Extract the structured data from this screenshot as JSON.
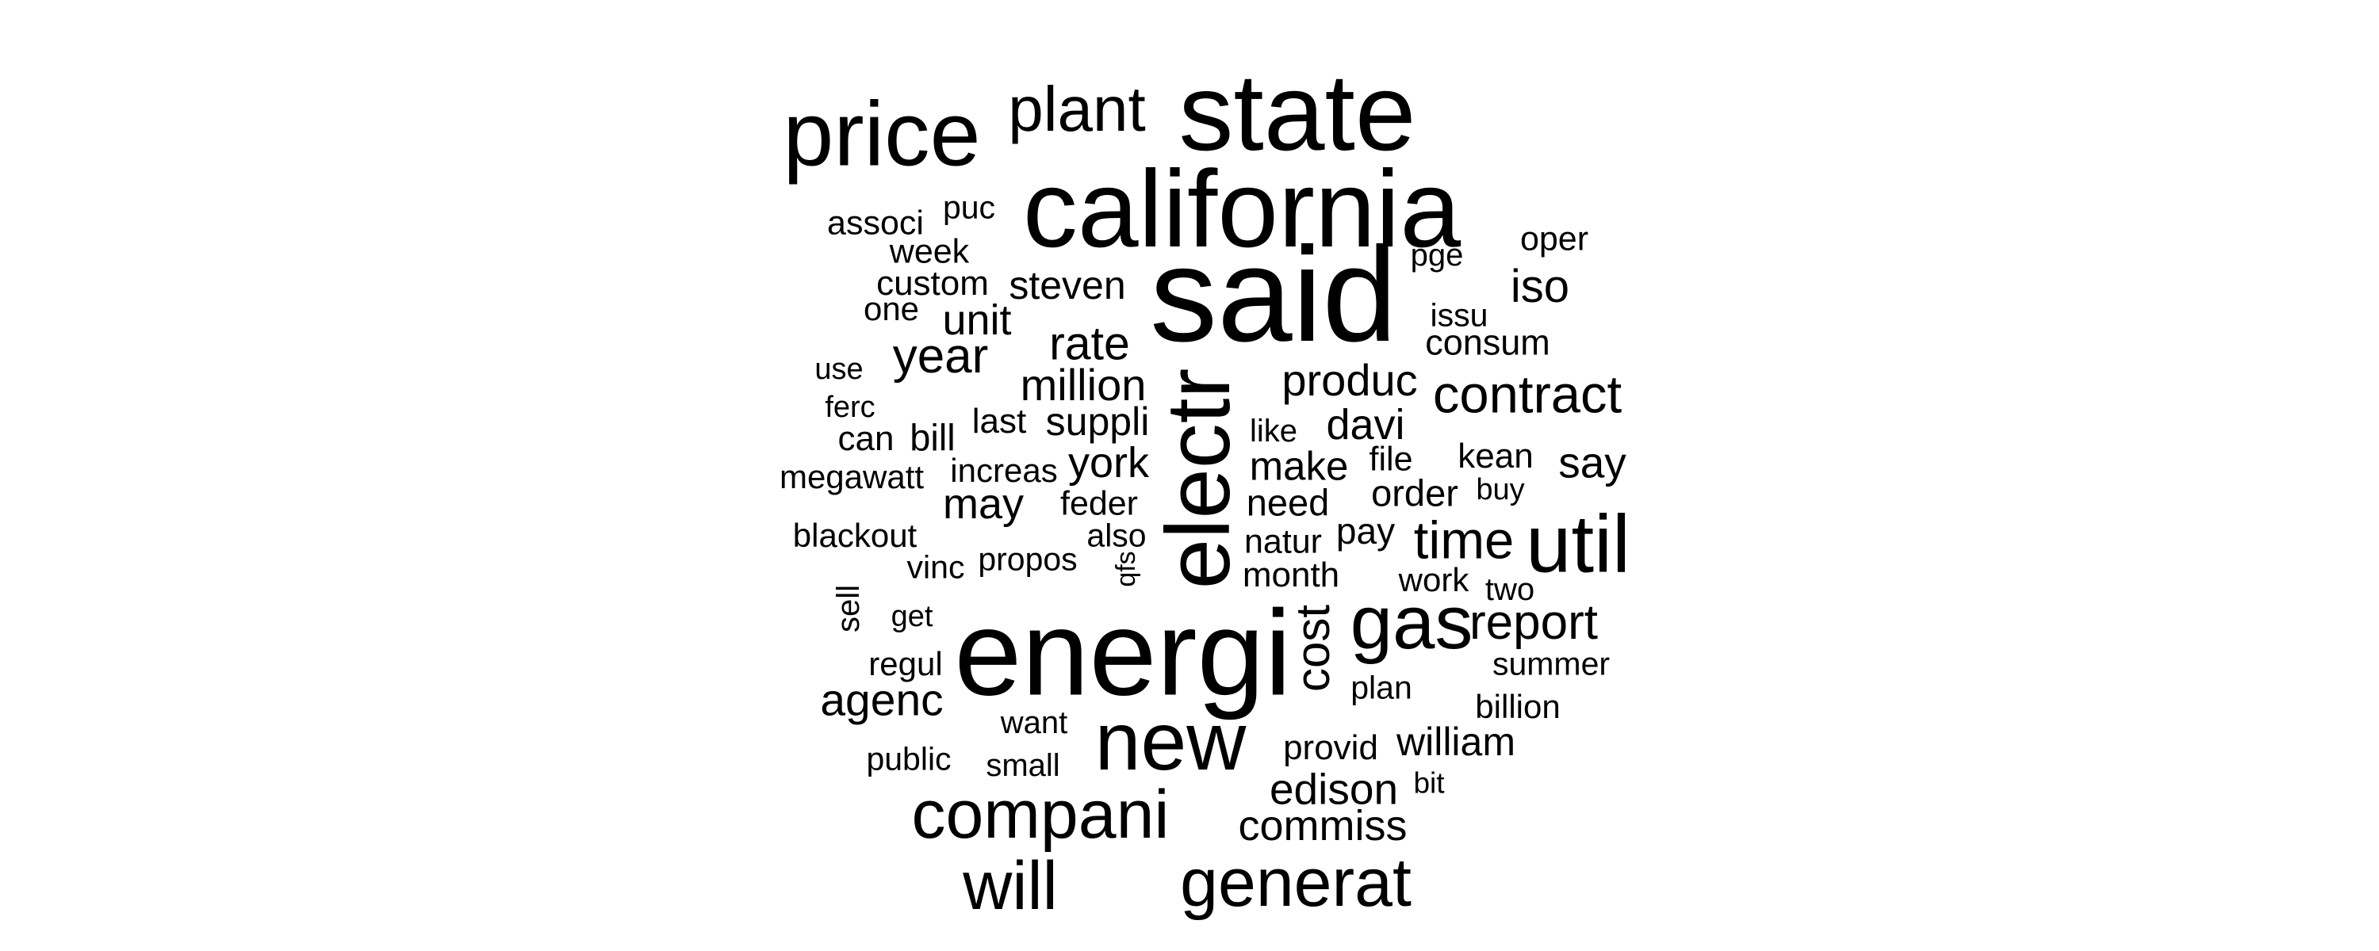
{
  "colors": {
    "background": "#ffffff",
    "text": "#000000"
  },
  "words": [
    {
      "text": "said",
      "weight": 170,
      "rotated": false
    },
    {
      "text": "energi",
      "weight": 153,
      "rotated": false
    },
    {
      "text": "california",
      "weight": 138,
      "rotated": false
    },
    {
      "text": "state",
      "weight": 138,
      "rotated": false
    },
    {
      "text": "electr",
      "weight": 114,
      "rotated": true
    },
    {
      "text": "price",
      "weight": 115,
      "rotated": false
    },
    {
      "text": "new",
      "weight": 104,
      "rotated": false
    },
    {
      "text": "util",
      "weight": 103,
      "rotated": false
    },
    {
      "text": "gas",
      "weight": 96,
      "rotated": false
    },
    {
      "text": "companí",
      "weight": 86,
      "rotated": false
    },
    {
      "text": "generat",
      "weight": 86,
      "rotated": false
    },
    {
      "text": "will",
      "weight": 86,
      "rotated": false
    },
    {
      "text": "plant",
      "weight": 80,
      "rotated": false
    },
    {
      "text": "contract",
      "weight": 67,
      "rotated": false
    },
    {
      "text": "time",
      "weight": 67,
      "rotated": false
    },
    {
      "text": "year",
      "weight": 62,
      "rotated": false
    },
    {
      "text": "report",
      "weight": 62,
      "rotated": false
    },
    {
      "text": "cost",
      "weight": 60,
      "rotated": true
    },
    {
      "text": "rate",
      "weight": 59,
      "rotated": false
    },
    {
      "text": "iso",
      "weight": 58,
      "rotated": false
    },
    {
      "text": "agenc",
      "weight": 57,
      "rotated": false
    },
    {
      "text": "million",
      "weight": 56,
      "rotated": false
    },
    {
      "text": "produc",
      "weight": 56,
      "rotated": false
    },
    {
      "text": "say",
      "weight": 55,
      "rotated": false
    },
    {
      "text": "edison",
      "weight": 55,
      "rotated": false
    },
    {
      "text": "davi",
      "weight": 54,
      "rotated": false
    },
    {
      "text": "unit",
      "weight": 54,
      "rotated": false
    },
    {
      "text": "commiss",
      "weight": 54,
      "rotated": false
    },
    {
      "text": "york",
      "weight": 54,
      "rotated": false
    },
    {
      "text": "may",
      "weight": 54,
      "rotated": false
    },
    {
      "text": "make",
      "weight": 51,
      "rotated": false
    },
    {
      "text": "suppli",
      "weight": 50,
      "rotated": false
    },
    {
      "text": "steven",
      "weight": 50,
      "rotated": false
    },
    {
      "text": "william",
      "weight": 50,
      "rotated": false
    },
    {
      "text": "need",
      "weight": 47,
      "rotated": false
    },
    {
      "text": "bill",
      "weight": 47,
      "rotated": false
    },
    {
      "text": "order",
      "weight": 47,
      "rotated": false
    },
    {
      "text": "pay",
      "weight": 46,
      "rotated": false
    },
    {
      "text": "consum",
      "weight": 45,
      "rotated": false
    },
    {
      "text": "kean",
      "weight": 44,
      "rotated": false
    },
    {
      "text": "custom",
      "weight": 44,
      "rotated": false
    },
    {
      "text": "month",
      "weight": 44,
      "rotated": false
    },
    {
      "text": "last",
      "weight": 44,
      "rotated": false
    },
    {
      "text": "provid",
      "weight": 44,
      "rotated": false
    },
    {
      "text": "can",
      "weight": 44,
      "rotated": false
    },
    {
      "text": "oper",
      "weight": 43,
      "rotated": false
    },
    {
      "text": "natur",
      "weight": 43,
      "rotated": false
    },
    {
      "text": "feder",
      "weight": 43,
      "rotated": false
    },
    {
      "text": "week",
      "weight": 43,
      "rotated": false
    },
    {
      "text": "associ",
      "weight": 43,
      "rotated": false
    },
    {
      "text": "file",
      "weight": 43,
      "rotated": false
    },
    {
      "text": "increas",
      "weight": 42,
      "rotated": false
    },
    {
      "text": "regul",
      "weight": 42,
      "rotated": false
    },
    {
      "text": "blackout",
      "weight": 42,
      "rotated": false
    },
    {
      "text": "megawatt",
      "weight": 42,
      "rotated": false
    },
    {
      "text": "billion",
      "weight": 42,
      "rotated": false
    },
    {
      "text": "one",
      "weight": 42,
      "rotated": false
    },
    {
      "text": "work",
      "weight": 42,
      "rotated": false
    },
    {
      "text": "summer",
      "weight": 41,
      "rotated": false
    },
    {
      "text": "issu",
      "weight": 41,
      "rotated": false
    },
    {
      "text": "puc",
      "weight": 41,
      "rotated": false
    },
    {
      "text": "public",
      "weight": 41,
      "rotated": false
    },
    {
      "text": "propos",
      "weight": 41,
      "rotated": false
    },
    {
      "text": "also",
      "weight": 41,
      "rotated": false
    },
    {
      "text": "plan",
      "weight": 41,
      "rotated": false
    },
    {
      "text": "vinc",
      "weight": 41,
      "rotated": false
    },
    {
      "text": "pge",
      "weight": 40,
      "rotated": false
    },
    {
      "text": "sell",
      "weight": 40,
      "rotated": true
    },
    {
      "text": "small",
      "weight": 40,
      "rotated": false
    },
    {
      "text": "want",
      "weight": 40,
      "rotated": false
    },
    {
      "text": "like",
      "weight": 40,
      "rotated": false
    },
    {
      "text": "two",
      "weight": 40,
      "rotated": false
    },
    {
      "text": "use",
      "weight": 38,
      "rotated": false
    },
    {
      "text": "ferc",
      "weight": 38,
      "rotated": false
    },
    {
      "text": "buy",
      "weight": 38,
      "rotated": false
    },
    {
      "text": "get",
      "weight": 38,
      "rotated": false
    },
    {
      "text": "bit",
      "weight": 37,
      "rotated": false
    },
    {
      "text": "qfs",
      "weight": 34,
      "rotated": true
    }
  ]
}
